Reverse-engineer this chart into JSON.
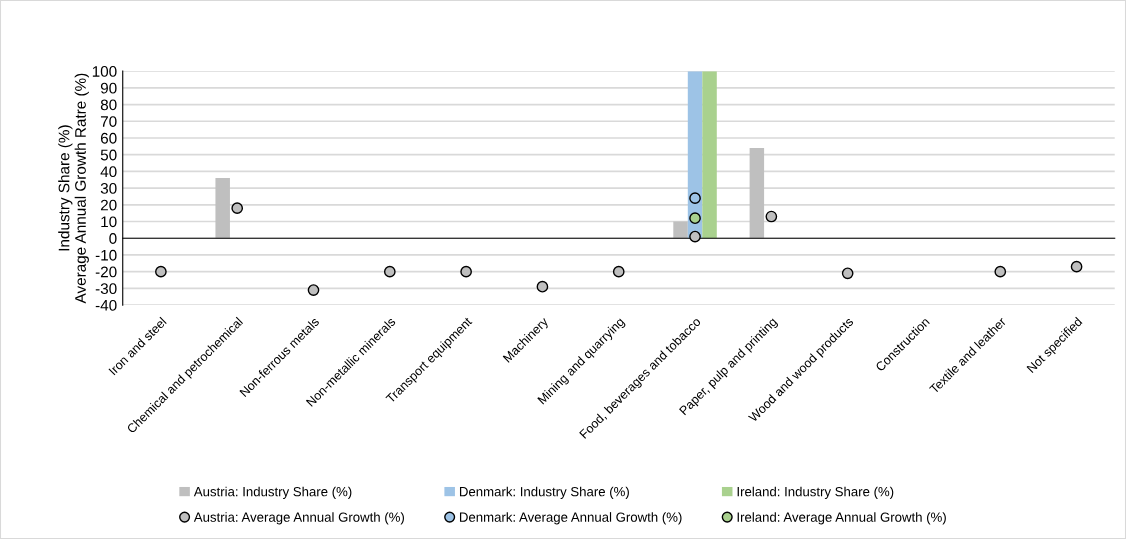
{
  "chart_data": {
    "type": "bar",
    "ylabel": "Industry Share (%)\nAverage Annual Growth Ratre (%)",
    "categories": [
      "Iron and steel",
      "Chemical and petrochemical",
      "Non-ferrous metals",
      "Non-metallic minerals",
      "Transport equipment",
      "Machinery",
      "Mining and quarrying",
      "Food, beverages and tobacco",
      "Paper, pulp and printing",
      "Wood and wood products",
      "Construction",
      "Textile and leather",
      "Not specified"
    ],
    "ylim": [
      -40,
      100
    ],
    "yticks": [
      -40,
      -30,
      -20,
      -10,
      0,
      10,
      20,
      30,
      40,
      50,
      60,
      70,
      80,
      90,
      100
    ],
    "grid": "y",
    "legend": "bottom",
    "series": [
      {
        "name": "Austria: Industry Share (%)",
        "color": "#bfbfbf",
        "values": [
          null,
          36,
          null,
          null,
          null,
          null,
          null,
          10,
          54,
          null,
          null,
          null,
          null
        ]
      },
      {
        "name": "Denmark: Industry Share (%)",
        "color": "#9dc3e6",
        "values": [
          null,
          null,
          null,
          null,
          null,
          null,
          null,
          100,
          null,
          null,
          null,
          null,
          null
        ]
      },
      {
        "name": "Ireland: Industry Share (%)",
        "color": "#a9d18e",
        "values": [
          null,
          null,
          null,
          null,
          null,
          null,
          null,
          100,
          null,
          null,
          null,
          null,
          null
        ]
      },
      {
        "name": "Austria: Average Annual Growth (%)",
        "type": "scatter",
        "marker": "circle",
        "color": "#bfbfbf",
        "values": [
          -20,
          18,
          -31,
          -20,
          -20,
          -29,
          -20,
          1,
          13,
          -21,
          null,
          -20,
          -17
        ]
      },
      {
        "name": "Denmark: Average Annual Growth (%)",
        "type": "scatter",
        "marker": "circle",
        "color": "#9dc3e6",
        "values": [
          null,
          null,
          null,
          null,
          null,
          null,
          null,
          24,
          null,
          null,
          null,
          null,
          null
        ]
      },
      {
        "name": "Ireland: Average Annual Growth (%)",
        "type": "scatter",
        "marker": "circle",
        "color": "#a9d18e",
        "values": [
          null,
          null,
          null,
          null,
          null,
          null,
          null,
          12,
          null,
          null,
          null,
          null,
          null
        ]
      }
    ]
  }
}
